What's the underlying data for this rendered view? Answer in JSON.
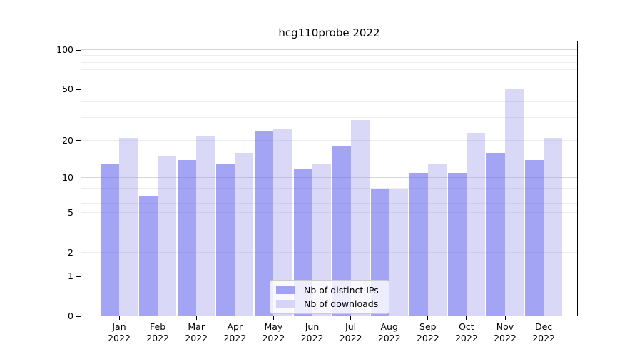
{
  "title": "hcg110probe 2022",
  "chart_data": {
    "type": "bar",
    "title": "hcg110probe 2022",
    "categories": [
      "Jan",
      "Feb",
      "Mar",
      "Apr",
      "May",
      "Jun",
      "Jul",
      "Aug",
      "Sep",
      "Oct",
      "Nov",
      "Dec"
    ],
    "year_label": "2022",
    "series": [
      {
        "name": "Nb of distinct IPs",
        "color": "#a4a4f3",
        "fill": "rgba(103,103,238,0.60)",
        "values": [
          13,
          7,
          14,
          13,
          24,
          12,
          18,
          8,
          11,
          11,
          16,
          14
        ]
      },
      {
        "name": "Nb of downloads",
        "color": "#d9d9f7",
        "fill": "rgba(150,150,233,0.36)",
        "values": [
          21,
          15,
          22,
          16,
          25,
          13,
          29,
          8,
          13,
          23,
          51,
          21
        ]
      }
    ],
    "xlabel": "",
    "ylabel": "",
    "yscale": "log1p",
    "yticks": [
      0,
      1,
      2,
      5,
      10,
      20,
      50,
      100
    ],
    "minor_gridlines": [
      2,
      3,
      4,
      5,
      6,
      7,
      8,
      9,
      20,
      30,
      40,
      50,
      60,
      70,
      80,
      90,
      110
    ],
    "major_gridlines": [
      1,
      10,
      100
    ],
    "ylim": [
      0,
      117
    ],
    "grid": "both",
    "legend_position": "lower-center",
    "bar_gridline_major_color": "#d6d6d6",
    "bar_gridline_minor_color": "#ededed"
  }
}
